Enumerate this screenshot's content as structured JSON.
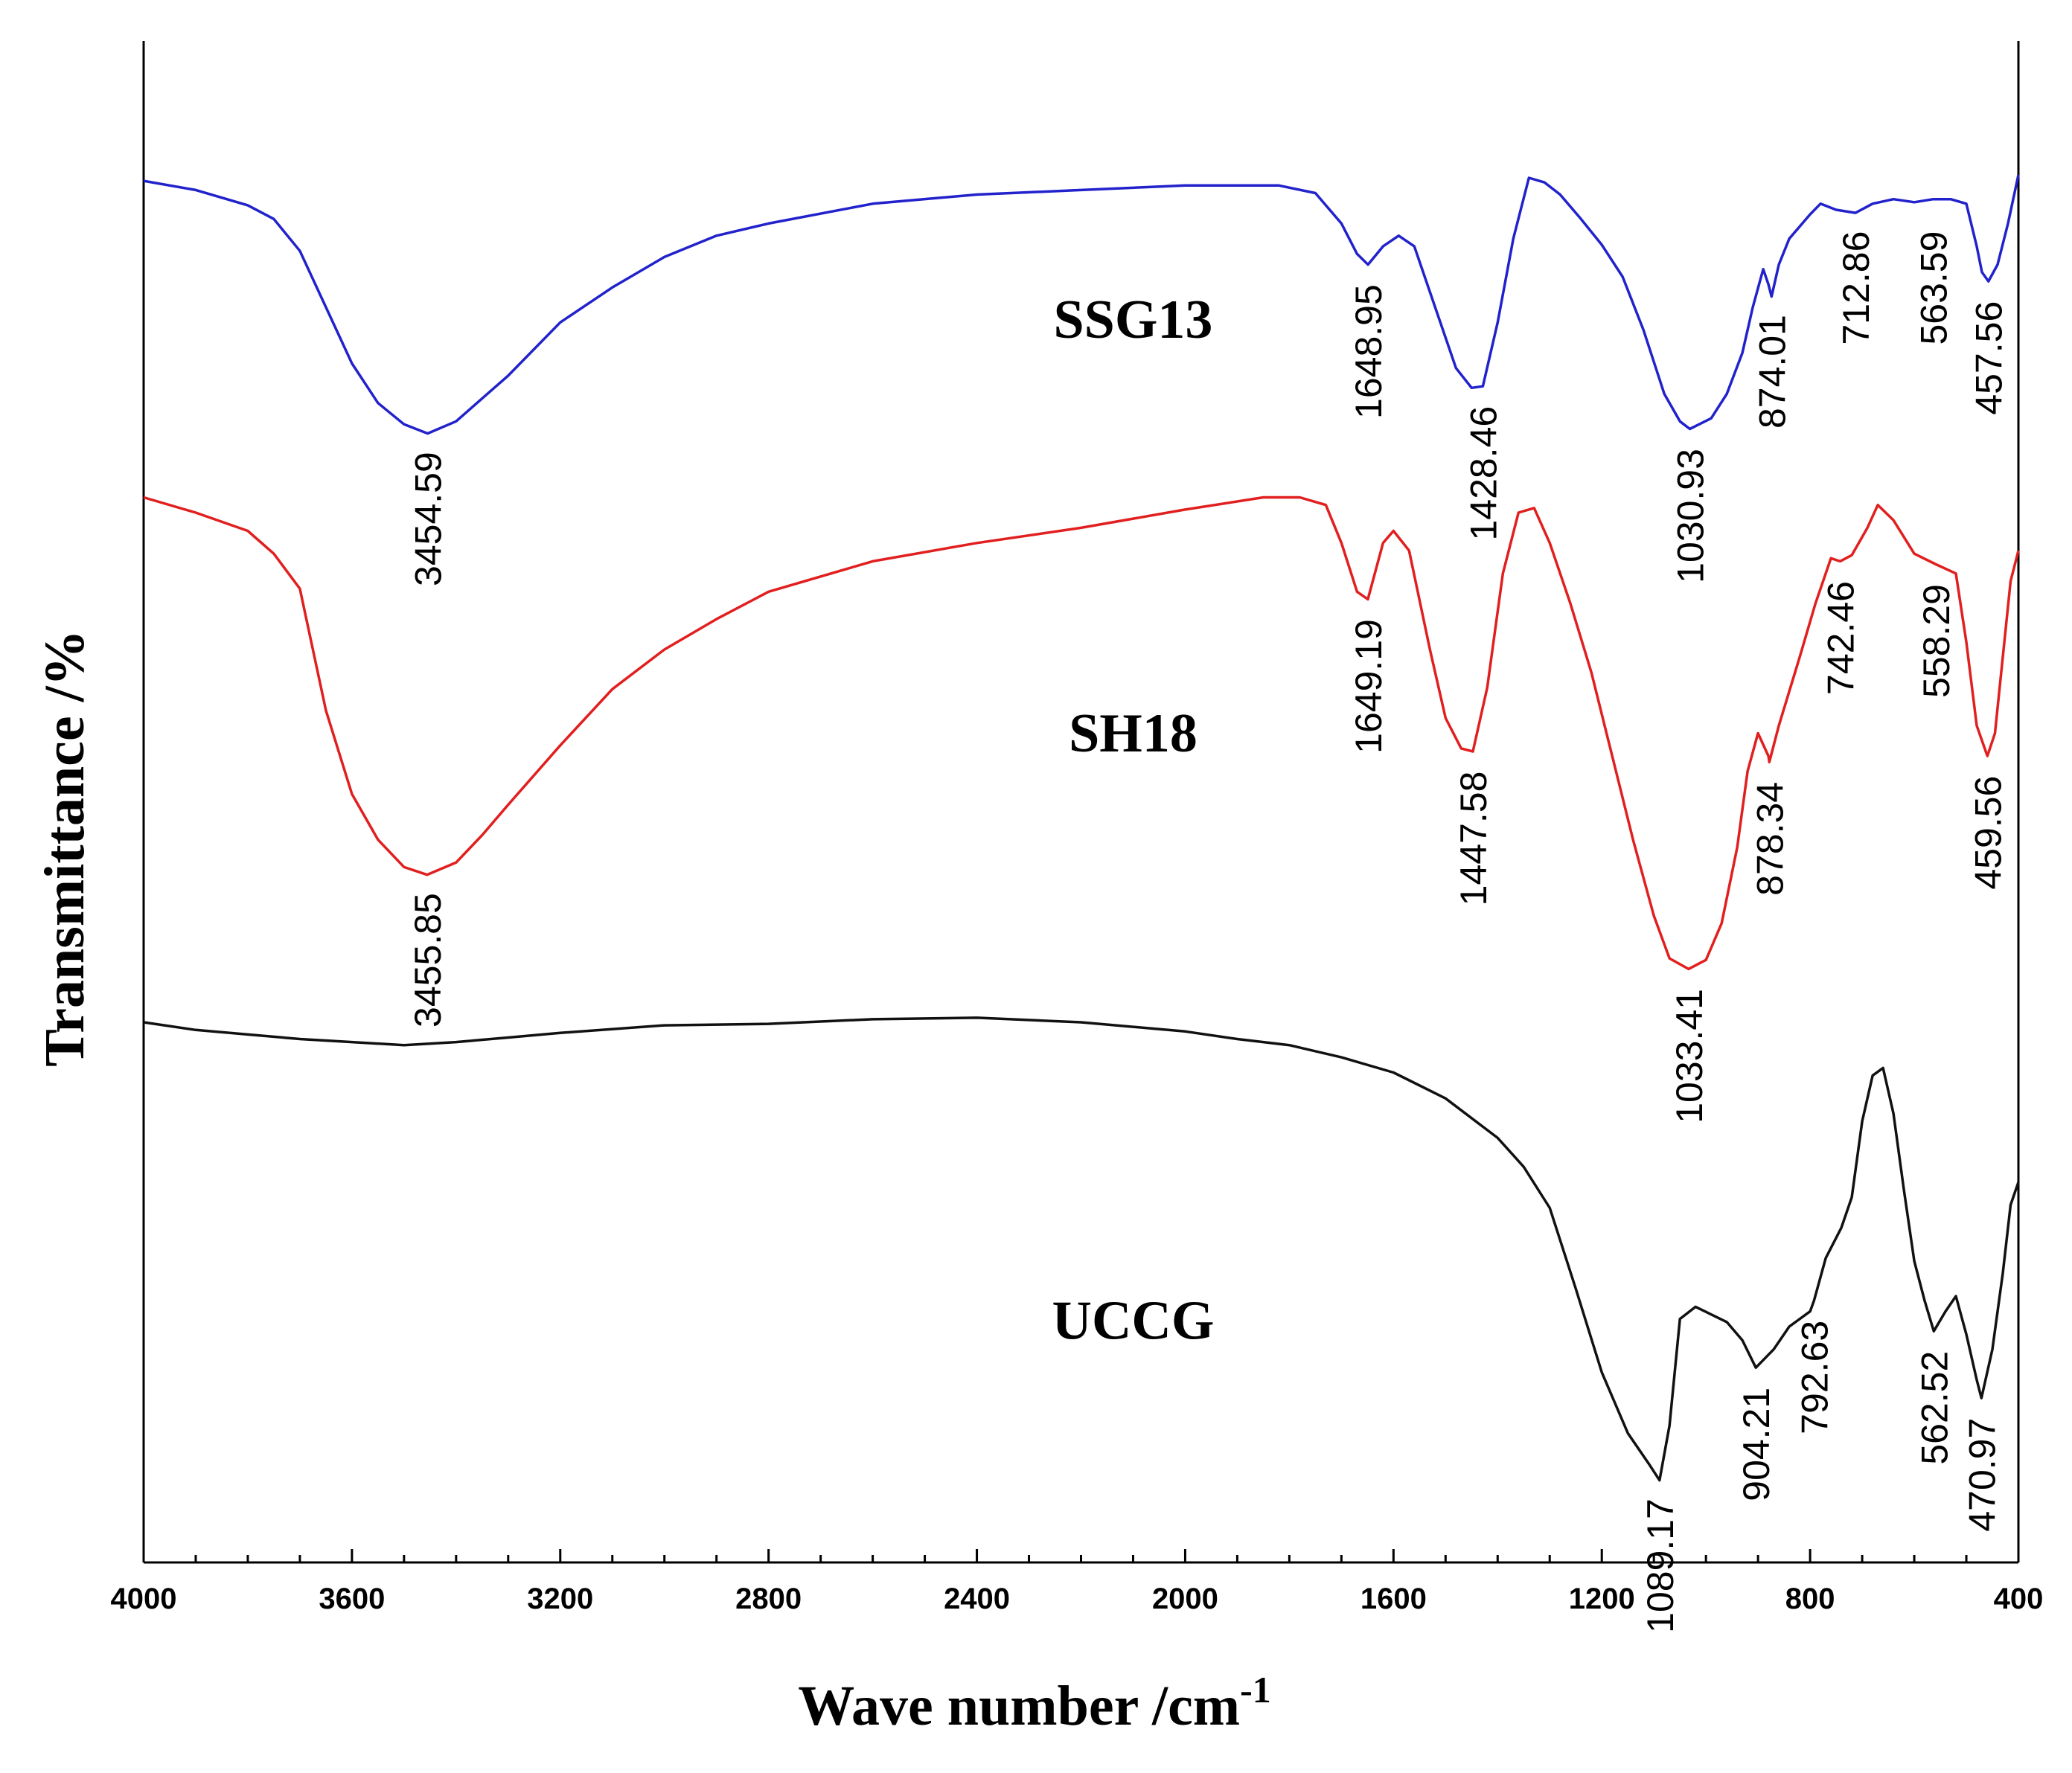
{
  "chart_data": {
    "type": "line",
    "title": "",
    "xlabel": "Wave number /cm",
    "xlabel_sup": "-1",
    "ylabel": "Transmittance /%",
    "xlim": [
      4000,
      400
    ],
    "ylim": [
      0,
      100
    ],
    "x_ticks": [
      4000,
      3600,
      3200,
      2800,
      2400,
      2000,
      1600,
      1200,
      800,
      400
    ],
    "x_tick_labels": [
      "4000",
      "3600",
      "3200",
      "2800",
      "2400",
      "2000",
      "1600",
      "1200",
      "800",
      "400"
    ],
    "grid": false,
    "series": [
      {
        "name": "SSG13",
        "color": "#2222cc",
        "points": [
          [
            4000,
            90.8
          ],
          [
            3900,
            90.2
          ],
          [
            3800,
            89.2
          ],
          [
            3750,
            88.3
          ],
          [
            3700,
            86.2
          ],
          [
            3650,
            82.5
          ],
          [
            3600,
            78.8
          ],
          [
            3550,
            76.2
          ],
          [
            3500,
            74.8
          ],
          [
            3454.59,
            74.2
          ],
          [
            3400,
            75.0
          ],
          [
            3350,
            76.5
          ],
          [
            3300,
            78.0
          ],
          [
            3200,
            81.5
          ],
          [
            3100,
            83.8
          ],
          [
            3000,
            85.8
          ],
          [
            2900,
            87.2
          ],
          [
            2800,
            88.0
          ],
          [
            2600,
            89.3
          ],
          [
            2400,
            89.9
          ],
          [
            2200,
            90.2
          ],
          [
            2000,
            90.5
          ],
          [
            1820,
            90.5
          ],
          [
            1750,
            90.0
          ],
          [
            1700,
            88.0
          ],
          [
            1670,
            86.0
          ],
          [
            1648.95,
            85.3
          ],
          [
            1620,
            86.5
          ],
          [
            1590,
            87.2
          ],
          [
            1560,
            86.5
          ],
          [
            1520,
            82.5
          ],
          [
            1480,
            78.5
          ],
          [
            1450,
            77.2
          ],
          [
            1428.46,
            77.3
          ],
          [
            1400,
            81.5
          ],
          [
            1370,
            87.0
          ],
          [
            1340,
            91.0
          ],
          [
            1310,
            90.7
          ],
          [
            1280,
            89.9
          ],
          [
            1240,
            88.3
          ],
          [
            1200,
            86.6
          ],
          [
            1160,
            84.5
          ],
          [
            1120,
            81.0
          ],
          [
            1080,
            76.8
          ],
          [
            1050,
            75.0
          ],
          [
            1030.93,
            74.5
          ],
          [
            990,
            75.2
          ],
          [
            960,
            76.8
          ],
          [
            930,
            79.5
          ],
          [
            910,
            82.5
          ],
          [
            890,
            85.0
          ],
          [
            880,
            84.0
          ],
          [
            874.01,
            83.2
          ],
          [
            860,
            85.3
          ],
          [
            840,
            87.0
          ],
          [
            800,
            88.6
          ],
          [
            780,
            89.3
          ],
          [
            750,
            88.9
          ],
          [
            712.86,
            88.7
          ],
          [
            680,
            89.3
          ],
          [
            640,
            89.6
          ],
          [
            600,
            89.4
          ],
          [
            563.59,
            89.6
          ],
          [
            530,
            89.6
          ],
          [
            500,
            89.3
          ],
          [
            480,
            86.5
          ],
          [
            470,
            84.8
          ],
          [
            457.56,
            84.2
          ],
          [
            440,
            85.3
          ],
          [
            420,
            88.0
          ],
          [
            400,
            91.2
          ]
        ]
      },
      {
        "name": "SH18",
        "color": "#e11f1f",
        "points": [
          [
            4000,
            70.0
          ],
          [
            3900,
            69.0
          ],
          [
            3800,
            67.8
          ],
          [
            3750,
            66.3
          ],
          [
            3700,
            64.0
          ],
          [
            3650,
            56.0
          ],
          [
            3600,
            50.5
          ],
          [
            3550,
            47.5
          ],
          [
            3500,
            45.7
          ],
          [
            3455.85,
            45.2
          ],
          [
            3400,
            46.0
          ],
          [
            3350,
            47.8
          ],
          [
            3300,
            49.8
          ],
          [
            3200,
            53.7
          ],
          [
            3100,
            57.4
          ],
          [
            3000,
            60.0
          ],
          [
            2900,
            62.0
          ],
          [
            2800,
            63.8
          ],
          [
            2600,
            65.8
          ],
          [
            2400,
            67.0
          ],
          [
            2200,
            68.0
          ],
          [
            2000,
            69.2
          ],
          [
            1850,
            70.0
          ],
          [
            1780,
            70.0
          ],
          [
            1730,
            69.5
          ],
          [
            1700,
            67.0
          ],
          [
            1670,
            63.8
          ],
          [
            1649.19,
            63.3
          ],
          [
            1620,
            67.0
          ],
          [
            1600,
            67.8
          ],
          [
            1570,
            66.5
          ],
          [
            1530,
            60.0
          ],
          [
            1500,
            55.5
          ],
          [
            1470,
            53.5
          ],
          [
            1447.58,
            53.3
          ],
          [
            1420,
            57.5
          ],
          [
            1390,
            65.0
          ],
          [
            1360,
            69.0
          ],
          [
            1330,
            69.3
          ],
          [
            1300,
            67.0
          ],
          [
            1260,
            63.0
          ],
          [
            1220,
            58.5
          ],
          [
            1180,
            53.0
          ],
          [
            1140,
            47.5
          ],
          [
            1100,
            42.5
          ],
          [
            1070,
            39.7
          ],
          [
            1033.41,
            39.0
          ],
          [
            1000,
            39.6
          ],
          [
            970,
            42.0
          ],
          [
            940,
            47.0
          ],
          [
            920,
            52.0
          ],
          [
            900,
            54.5
          ],
          [
            880,
            53.0
          ],
          [
            878.34,
            52.6
          ],
          [
            860,
            55.0
          ],
          [
            820,
            59.5
          ],
          [
            790,
            63.0
          ],
          [
            760,
            66.0
          ],
          [
            742.46,
            65.8
          ],
          [
            720,
            66.2
          ],
          [
            690,
            68.0
          ],
          [
            670,
            69.5
          ],
          [
            640,
            68.5
          ],
          [
            600,
            66.3
          ],
          [
            558.29,
            65.6
          ],
          [
            520,
            65.0
          ],
          [
            500,
            60.5
          ],
          [
            480,
            55.0
          ],
          [
            459.56,
            53.0
          ],
          [
            445,
            54.5
          ],
          [
            430,
            59.5
          ],
          [
            415,
            64.5
          ],
          [
            400,
            66.5
          ]
        ]
      },
      {
        "name": "UCCG",
        "color": "#111111",
        "points": [
          [
            4000,
            35.5
          ],
          [
            3900,
            35.0
          ],
          [
            3800,
            34.7
          ],
          [
            3700,
            34.4
          ],
          [
            3600,
            34.2
          ],
          [
            3500,
            34.0
          ],
          [
            3400,
            34.2
          ],
          [
            3300,
            34.5
          ],
          [
            3200,
            34.8
          ],
          [
            3000,
            35.3
          ],
          [
            2800,
            35.4
          ],
          [
            2600,
            35.7
          ],
          [
            2400,
            35.8
          ],
          [
            2200,
            35.5
          ],
          [
            2000,
            34.9
          ],
          [
            1900,
            34.4
          ],
          [
            1800,
            34.0
          ],
          [
            1700,
            33.2
          ],
          [
            1600,
            32.2
          ],
          [
            1500,
            30.5
          ],
          [
            1400,
            27.9
          ],
          [
            1350,
            26.0
          ],
          [
            1300,
            23.3
          ],
          [
            1250,
            18.0
          ],
          [
            1200,
            12.5
          ],
          [
            1150,
            8.5
          ],
          [
            1110,
            6.5
          ],
          [
            1089.17,
            5.4
          ],
          [
            1070,
            9.0
          ],
          [
            1050,
            16.0
          ],
          [
            1020,
            16.8
          ],
          [
            990,
            16.3
          ],
          [
            960,
            15.8
          ],
          [
            930,
            14.6
          ],
          [
            904.21,
            12.8
          ],
          [
            870,
            14.0
          ],
          [
            840,
            15.5
          ],
          [
            800,
            16.5
          ],
          [
            792.63,
            17.2
          ],
          [
            770,
            20.0
          ],
          [
            740,
            22.0
          ],
          [
            720,
            24.0
          ],
          [
            700,
            29.0
          ],
          [
            680,
            32.0
          ],
          [
            660,
            32.5
          ],
          [
            640,
            29.5
          ],
          [
            620,
            24.5
          ],
          [
            600,
            19.8
          ],
          [
            580,
            17.2
          ],
          [
            562.52,
            15.2
          ],
          [
            540,
            16.5
          ],
          [
            520,
            17.5
          ],
          [
            500,
            15.0
          ],
          [
            480,
            12.0
          ],
          [
            470.97,
            10.8
          ],
          [
            450,
            14.0
          ],
          [
            430,
            19.0
          ],
          [
            415,
            23.5
          ],
          [
            400,
            25.0
          ]
        ]
      }
    ],
    "series_labels": [
      {
        "text": "SSG13",
        "x": 2100,
        "y": 80.5
      },
      {
        "text": "SH18",
        "x": 2100,
        "y": 53.3
      },
      {
        "text": "UCCG",
        "x": 2100,
        "y": 14.7
      }
    ],
    "peak_labels": [
      {
        "text": "3454.59",
        "x": 3454.59,
        "y": 73.0
      },
      {
        "text": "1648.95",
        "x": 1648.95,
        "y": 84.0
      },
      {
        "text": "1428.46",
        "x": 1428.46,
        "y": 76.0
      },
      {
        "text": "1030.93",
        "x": 1030.93,
        "y": 73.2
      },
      {
        "text": "874.01",
        "x": 874.01,
        "y": 82.0
      },
      {
        "text": "712.86",
        "x": 712.86,
        "y": 87.5
      },
      {
        "text": "563.59",
        "x": 563.59,
        "y": 87.5
      },
      {
        "text": "457.56",
        "x": 457.56,
        "y": 82.9
      },
      {
        "text": "3455.85",
        "x": 3455.85,
        "y": 44.0
      },
      {
        "text": "1649.19",
        "x": 1649.19,
        "y": 62.0
      },
      {
        "text": "1447.58",
        "x": 1447.58,
        "y": 52.0
      },
      {
        "text": "1033.41",
        "x": 1033.41,
        "y": 37.7
      },
      {
        "text": "878.34",
        "x": 878.34,
        "y": 51.3
      },
      {
        "text": "742.46",
        "x": 742.46,
        "y": 64.5
      },
      {
        "text": "558.29",
        "x": 558.29,
        "y": 64.3
      },
      {
        "text": "459.56",
        "x": 459.56,
        "y": 51.7
      },
      {
        "text": "1089.17",
        "x": 1089.17,
        "y": 4.2
      },
      {
        "text": "904.21",
        "x": 904.21,
        "y": 11.5
      },
      {
        "text": "792.63",
        "x": 792.63,
        "y": 15.9
      },
      {
        "text": "562.52",
        "x": 562.52,
        "y": 13.9
      },
      {
        "text": "470.97",
        "x": 470.97,
        "y": 9.5
      }
    ]
  }
}
